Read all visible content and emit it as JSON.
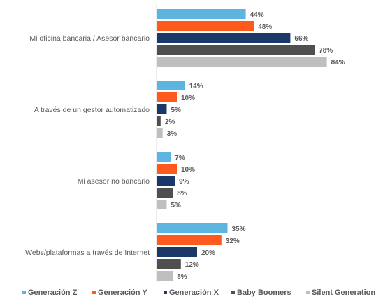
{
  "chart_data": {
    "type": "bar",
    "orientation": "horizontal",
    "categories": [
      "Mi oficina bancaria / Asesor bancario",
      "A través de un gestor automatizado",
      "Mi asesor no bancario",
      "Webs/plataformas a través de Internet"
    ],
    "series": [
      {
        "name": "Generación Z",
        "color": "#5BB5E0",
        "values": [
          44,
          14,
          7,
          35
        ],
        "labels": [
          "44%",
          "14%",
          "7%",
          "35%"
        ]
      },
      {
        "name": "Generación Y",
        "color": "#FF5A1E",
        "values": [
          48,
          10,
          10,
          32
        ],
        "labels": [
          "48%",
          "10%",
          "10%",
          "32%"
        ]
      },
      {
        "name": "Generación X",
        "color": "#1A3868",
        "values": [
          66,
          5,
          9,
          20
        ],
        "labels": [
          "66%",
          "5%",
          "9%",
          "20%"
        ]
      },
      {
        "name": "Baby Boomers",
        "color": "#4F4F4F",
        "values": [
          78,
          2,
          8,
          12
        ],
        "labels": [
          "78%",
          "2%",
          "8%",
          "12%"
        ]
      },
      {
        "name": "Silent Generation",
        "color": "#BFBFBF",
        "values": [
          84,
          3,
          5,
          8
        ],
        "labels": [
          "84%",
          "3%",
          "5%",
          "8%"
        ]
      }
    ],
    "xlim": [
      0,
      100
    ],
    "grid": false,
    "legend_position": "bottom"
  }
}
